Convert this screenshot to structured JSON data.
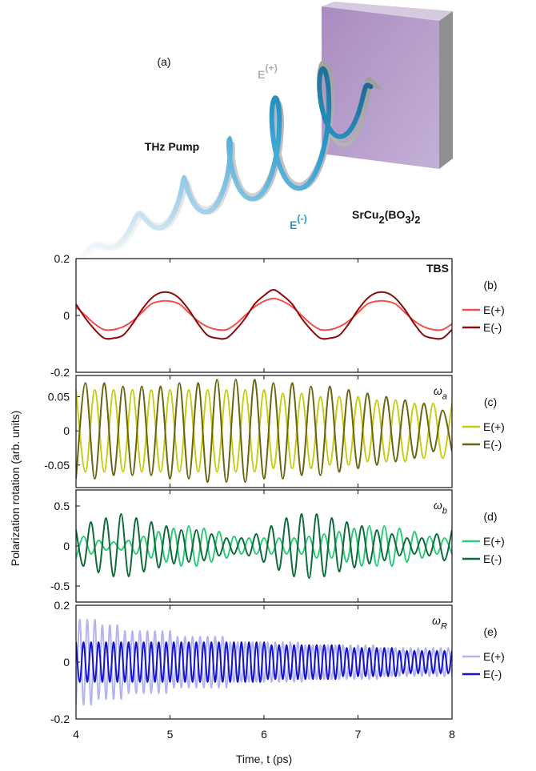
{
  "figure": {
    "panel_a": {
      "label": "(a)",
      "e_plus": {
        "text": "E",
        "sup": "(+)"
      },
      "pump": "THz Pump",
      "e_minus": {
        "text": "E",
        "sup": "(-)"
      },
      "material": [
        {
          "text": "SrCu"
        },
        {
          "sub": "2"
        },
        {
          "text": "(BO"
        },
        {
          "sub": "3"
        },
        {
          "text": ")"
        },
        {
          "sub": "2"
        }
      ]
    },
    "ylabel": "Polarization rotation (arb. units)",
    "xlabel": "Time, t (ps)"
  },
  "chart_data": [
    {
      "type": "line",
      "panel": "(b)",
      "annotation": {
        "text": "TBS"
      },
      "xlim": [
        4,
        8
      ],
      "xticks": [
        4,
        5,
        6,
        7,
        8
      ],
      "ylim": [
        -0.2,
        0.2
      ],
      "yticks": [
        0.2,
        0,
        -0.2
      ],
      "x": [
        4,
        4.1,
        4.2,
        4.3,
        4.4,
        4.5,
        4.6,
        4.7,
        4.8,
        4.9,
        5,
        5.1,
        5.2,
        5.3,
        5.4,
        5.5,
        5.6,
        5.7,
        5.8,
        5.9,
        6,
        6.1,
        6.2,
        6.3,
        6.4,
        6.5,
        6.6,
        6.7,
        6.8,
        6.9,
        7,
        7.1,
        7.2,
        7.3,
        7.4,
        7.5,
        7.6,
        7.7,
        7.8,
        7.9,
        8
      ],
      "series": [
        {
          "name": "E(+)",
          "color": "#f2504c",
          "values": [
            0.03,
            0,
            -0.03,
            -0.05,
            -0.05,
            -0.04,
            -0.02,
            0.01,
            0.04,
            0.05,
            0.05,
            0.04,
            0.01,
            -0.02,
            -0.04,
            -0.05,
            -0.05,
            -0.03,
            0,
            0.03,
            0.05,
            0.06,
            0.05,
            0.03,
            0,
            -0.03,
            -0.05,
            -0.05,
            -0.04,
            -0.02,
            0.01,
            0.04,
            0.05,
            0.05,
            0.04,
            0.01,
            -0.02,
            -0.04,
            -0.05,
            -0.05,
            -0.03
          ]
        },
        {
          "name": "E(-)",
          "color": "#8a0d0d",
          "values": [
            0.04,
            -0.01,
            -0.05,
            -0.08,
            -0.08,
            -0.07,
            -0.03,
            0.02,
            0.06,
            0.08,
            0.08,
            0.06,
            0.02,
            -0.03,
            -0.07,
            -0.08,
            -0.08,
            -0.05,
            -0.01,
            0.04,
            0.07,
            0.09,
            0.07,
            0.04,
            -0.01,
            -0.05,
            -0.08,
            -0.08,
            -0.07,
            -0.03,
            0.02,
            0.06,
            0.08,
            0.08,
            0.06,
            0.02,
            -0.03,
            -0.07,
            -0.08,
            -0.08,
            -0.05
          ]
        }
      ]
    },
    {
      "type": "line",
      "panel": "(c)",
      "annotation": {
        "text": "ω",
        "sub": "a"
      },
      "xlim": [
        4,
        8
      ],
      "xticks": [
        4,
        5,
        6,
        7,
        8
      ],
      "ylim": [
        -0.083,
        0.081
      ],
      "yticks": [
        0.05,
        0,
        -0.05
      ],
      "x": [
        4,
        4.1,
        4.2,
        4.3,
        4.4,
        4.5,
        4.6,
        4.7,
        4.8,
        4.9,
        5,
        5.1,
        5.2,
        5.3,
        5.4,
        5.5,
        5.6,
        5.7,
        5.8,
        5.9,
        6,
        6.1,
        6.2,
        6.3,
        6.4,
        6.5,
        6.6,
        6.7,
        6.8,
        6.9,
        7,
        7.1,
        7.2,
        7.3,
        7.4,
        7.5,
        7.6,
        7.7,
        7.8,
        7.9,
        8
      ],
      "series": [
        {
          "name": "E(+)",
          "color": "#c9cc12",
          "values": [
            0.06,
            -0.06,
            0.06,
            -0.06,
            0.06,
            -0.06,
            0.06,
            -0.06,
            0.06,
            -0.06,
            0.06,
            -0.06,
            0.06,
            -0.06,
            0.06,
            -0.06,
            0.06,
            -0.06,
            0.06,
            -0.06,
            0.06,
            -0.055,
            0.055,
            -0.055,
            0.055,
            -0.055,
            0.05,
            -0.05,
            0.05,
            -0.05,
            0.05,
            -0.045,
            0.045,
            -0.045,
            0.045,
            -0.045,
            0.04,
            -0.04,
            0.04,
            -0.04,
            0.04
          ]
        },
        {
          "name": "E(-)",
          "color": "#6b6410",
          "values": [
            -0.07,
            0.07,
            -0.07,
            0.07,
            -0.065,
            0.065,
            -0.065,
            0.065,
            -0.065,
            0.065,
            -0.07,
            0.07,
            -0.07,
            0.07,
            -0.075,
            0.075,
            -0.075,
            0.075,
            -0.075,
            0.075,
            -0.07,
            0.07,
            -0.07,
            0.07,
            -0.065,
            0.065,
            -0.065,
            0.065,
            -0.06,
            0.06,
            -0.055,
            0.055,
            -0.05,
            0.05,
            -0.045,
            0.045,
            -0.04,
            0.04,
            -0.03,
            0.03,
            -0.03
          ]
        }
      ]
    },
    {
      "type": "line",
      "panel": "(d)",
      "annotation": {
        "text": "ω",
        "sub": "b"
      },
      "xlim": [
        4,
        8
      ],
      "xticks": [
        4,
        5,
        6,
        7,
        8
      ],
      "ylim": [
        -0.7,
        0.7
      ],
      "yticks": [
        0.5,
        0,
        -0.5
      ],
      "x": [
        4,
        4.08,
        4.16,
        4.24,
        4.32,
        4.4,
        4.48,
        4.56,
        4.64,
        4.72,
        4.8,
        4.88,
        4.96,
        5.04,
        5.12,
        5.2,
        5.28,
        5.36,
        5.44,
        5.52,
        5.6,
        5.68,
        5.76,
        5.84,
        5.92,
        6,
        6.08,
        6.16,
        6.24,
        6.32,
        6.4,
        6.48,
        6.56,
        6.64,
        6.72,
        6.8,
        6.88,
        6.96,
        7.04,
        7.12,
        7.2,
        7.28,
        7.36,
        7.44,
        7.52,
        7.6,
        7.68,
        7.76,
        7.84,
        7.92,
        8
      ],
      "series": [
        {
          "name": "E(+)",
          "color": "#2ecc7a",
          "values": [
            -0.15,
            0.12,
            -0.1,
            0.07,
            -0.05,
            0.05,
            -0.05,
            0.07,
            -0.1,
            0.12,
            -0.15,
            0.18,
            -0.2,
            0.22,
            -0.25,
            0.25,
            -0.25,
            0.22,
            -0.2,
            0.18,
            -0.15,
            0.12,
            -0.1,
            0.1,
            -0.1,
            0.1,
            -0.1,
            0.1,
            -0.1,
            0.1,
            -0.1,
            0.12,
            -0.15,
            0.15,
            -0.15,
            0.18,
            -0.2,
            0.22,
            -0.25,
            0.25,
            -0.25,
            0.25,
            -0.25,
            0.22,
            -0.2,
            0.18,
            -0.15,
            0.12,
            -0.1,
            0.1,
            -0.1
          ]
        },
        {
          "name": "E(-)",
          "color": "#0f6b3a",
          "values": [
            0.2,
            -0.25,
            0.3,
            -0.33,
            0.35,
            -0.38,
            0.4,
            -0.38,
            0.35,
            -0.32,
            0.3,
            -0.27,
            0.25,
            -0.22,
            0.2,
            -0.2,
            0.2,
            -0.18,
            0.15,
            -0.12,
            0.1,
            -0.1,
            0.1,
            -0.12,
            0.15,
            -0.2,
            0.25,
            -0.3,
            0.35,
            -0.38,
            0.4,
            -0.4,
            0.4,
            -0.38,
            0.35,
            -0.32,
            0.3,
            -0.27,
            0.25,
            -0.22,
            0.2,
            -0.18,
            0.15,
            -0.12,
            0.1,
            -0.1,
            0.1,
            -0.12,
            0.15,
            -0.18,
            0.2
          ]
        }
      ]
    },
    {
      "type": "line",
      "panel": "(e)",
      "annotation": {
        "text": "ω",
        "sub": "R"
      },
      "xlim": [
        4,
        8
      ],
      "xticks": [
        4,
        5,
        6,
        7,
        8
      ],
      "ylim": [
        -0.2,
        0.2
      ],
      "yticks": [
        0.2,
        0,
        -0.2
      ],
      "x": [
        4,
        4.04,
        4.08,
        4.12,
        4.16,
        4.2,
        4.24,
        4.28,
        4.32,
        4.36,
        4.4,
        4.44,
        4.48,
        4.52,
        4.56,
        4.6,
        4.64,
        4.68,
        4.72,
        4.76,
        4.8,
        4.84,
        4.88,
        4.92,
        4.96,
        5,
        5.04,
        5.08,
        5.12,
        5.16,
        5.2,
        5.24,
        5.28,
        5.32,
        5.36,
        5.4,
        5.44,
        5.48,
        5.52,
        5.56,
        5.6,
        5.64,
        5.68,
        5.72,
        5.76,
        5.8,
        5.84,
        5.88,
        5.92,
        5.96,
        6,
        6.04,
        6.08,
        6.12,
        6.16,
        6.2,
        6.24,
        6.28,
        6.32,
        6.36,
        6.4,
        6.44,
        6.48,
        6.52,
        6.56,
        6.6,
        6.64,
        6.68,
        6.72,
        6.76,
        6.8,
        6.84,
        6.88,
        6.92,
        6.96,
        7,
        7.04,
        7.08,
        7.12,
        7.16,
        7.2,
        7.24,
        7.28,
        7.32,
        7.36,
        7.4,
        7.44,
        7.48,
        7.52,
        7.56,
        7.6,
        7.64,
        7.68,
        7.72,
        7.76,
        7.8,
        7.84,
        7.88,
        7.92,
        7.96,
        8
      ],
      "series": [
        {
          "name": "E(+)",
          "color": "#b4b4f0",
          "values": [
            -0.15,
            0.15,
            -0.15,
            0.15,
            -0.15,
            0.15,
            -0.13,
            0.13,
            -0.13,
            0.13,
            -0.13,
            0.13,
            -0.13,
            0.11,
            -0.11,
            0.11,
            -0.11,
            0.11,
            -0.11,
            0.11,
            -0.11,
            0.11,
            -0.11,
            0.11,
            -0.11,
            0.11,
            -0.09,
            0.09,
            -0.09,
            0.09,
            -0.09,
            0.09,
            -0.09,
            0.09,
            -0.09,
            0.09,
            -0.09,
            0.09,
            -0.09,
            0.09,
            -0.09,
            0.07,
            -0.07,
            0.07,
            -0.07,
            0.07,
            -0.07,
            0.07,
            -0.07,
            0.07,
            -0.07,
            0.07,
            -0.07,
            0.07,
            -0.07,
            0.07,
            -0.07,
            0.07,
            -0.07,
            0.07,
            -0.07,
            0.06,
            -0.06,
            0.06,
            -0.06,
            0.06,
            -0.06,
            0.06,
            -0.06,
            0.06,
            -0.06,
            0.06,
            -0.06,
            0.06,
            -0.06,
            0.06,
            -0.06,
            0.06,
            -0.06,
            0.06,
            -0.06,
            0.05,
            -0.05,
            0.05,
            -0.05,
            0.05,
            -0.05,
            0.05,
            -0.05,
            0.05,
            -0.05,
            0.05,
            -0.05,
            0.05,
            -0.05,
            0.05,
            -0.05,
            0.05,
            -0.05,
            0.05,
            -0.05
          ]
        },
        {
          "name": "E(-)",
          "color": "#1414c8",
          "values": [
            0.07,
            -0.07,
            0.07,
            -0.07,
            0.07,
            -0.07,
            0.07,
            -0.07,
            0.07,
            -0.07,
            0.07,
            -0.07,
            0.07,
            -0.07,
            0.07,
            -0.07,
            0.07,
            -0.07,
            0.07,
            -0.07,
            0.07,
            -0.07,
            0.07,
            -0.07,
            0.07,
            -0.07,
            0.07,
            -0.07,
            0.07,
            -0.07,
            0.07,
            -0.07,
            0.07,
            -0.07,
            0.07,
            -0.07,
            0.07,
            -0.07,
            0.07,
            -0.07,
            0.07,
            -0.07,
            0.07,
            -0.07,
            0.07,
            -0.07,
            0.07,
            -0.07,
            0.07,
            -0.07,
            0.07,
            -0.06,
            0.06,
            -0.06,
            0.06,
            -0.06,
            0.06,
            -0.06,
            0.06,
            -0.06,
            0.06,
            -0.06,
            0.06,
            -0.06,
            0.06,
            -0.06,
            0.06,
            -0.06,
            0.06,
            -0.06,
            0.06,
            -0.05,
            0.05,
            -0.05,
            0.05,
            -0.05,
            0.05,
            -0.05,
            0.05,
            -0.05,
            0.05,
            -0.05,
            0.05,
            -0.05,
            0.05,
            -0.05,
            0.04,
            -0.04,
            0.04,
            -0.04,
            0.04,
            -0.04,
            0.04,
            -0.04,
            0.04,
            -0.04,
            0.04,
            -0.04,
            0.04,
            -0.04,
            0.04
          ]
        }
      ]
    }
  ]
}
